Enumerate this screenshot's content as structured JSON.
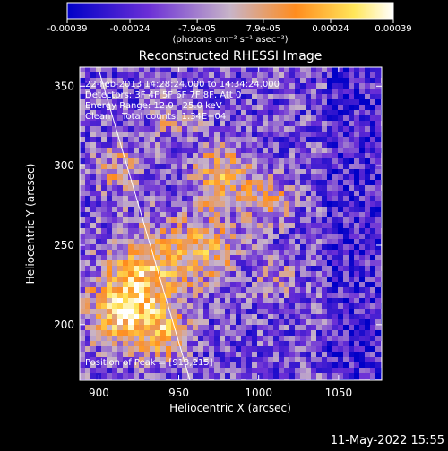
{
  "chart_data": {
    "type": "heatmap",
    "title": "Reconstructed RHESSI Image",
    "xlabel": "Heliocentric X (arcsec)",
    "ylabel": "Heliocentric Y (arcsec)",
    "xlim": [
      888,
      1077
    ],
    "ylim": [
      165,
      362
    ],
    "x_ticks": [
      "900",
      "950",
      "1000",
      "1050"
    ],
    "y_ticks": [
      "200",
      "250",
      "300",
      "350"
    ],
    "x_tick_values": [
      900,
      950,
      1000,
      1050
    ],
    "y_tick_values": [
      200,
      250,
      300,
      350
    ],
    "colorbar": {
      "tick_labels": [
        "-0.00039",
        "-0.00024",
        "-7.9e-05",
        "7.9e-05",
        "0.00024",
        "0.00039"
      ],
      "tick_values": [
        -0.00039,
        -0.00024,
        -7.9e-05,
        7.9e-05,
        0.00024,
        0.00039
      ],
      "range": [
        -0.00039,
        0.00039
      ],
      "units_label": "(photons cm⁻² s⁻¹ asec⁻²)",
      "colors": [
        "#0000c8",
        "#6b2fd6",
        "#c8b4c8",
        "#ff8c1e",
        "#ffe65a",
        "#ffffff"
      ]
    },
    "annotations": [
      "22-Feb-2013 14:28:24.000 to 14:34:24.000",
      "Detectors: 3F 4F 5F 6F 7F 8F, Att 0",
      "Energy Range: 12.0 - 25.0 keV",
      "Clean    Total counts: 1.34E+04"
    ],
    "peak_label": "Position of Peak = [913,215]",
    "peak_position": [
      913,
      215
    ],
    "limb_line": [
      [
        900,
        360
      ],
      [
        957,
        165
      ]
    ],
    "grid": false
  },
  "footer": {
    "timestamp": "11-May-2022 15:55"
  }
}
